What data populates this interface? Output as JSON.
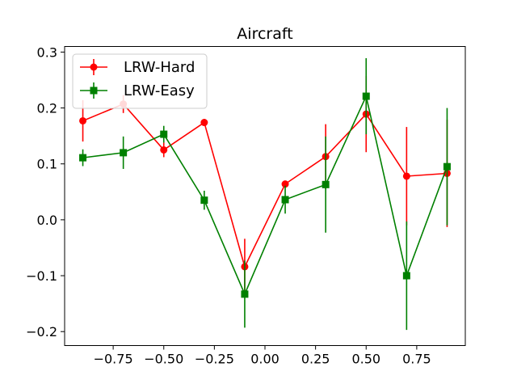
{
  "chart_data": {
    "type": "line",
    "title": "Aircraft",
    "xlabel": "",
    "ylabel": "",
    "xlim": [
      -0.99,
      0.99
    ],
    "ylim": [
      -0.225,
      0.31
    ],
    "grid": false,
    "legend_position": "top-left",
    "x_ticks": [
      -0.75,
      -0.5,
      -0.25,
      0.0,
      0.25,
      0.5,
      0.75
    ],
    "x_tick_labels": [
      "−0.75",
      "−0.50",
      "−0.25",
      "0.00",
      "0.25",
      "0.50",
      "0.75"
    ],
    "y_ticks": [
      -0.2,
      -0.1,
      0.0,
      0.1,
      0.2,
      0.3
    ],
    "y_tick_labels": [
      "−0.2",
      "−0.1",
      "0.0",
      "0.1",
      "0.2",
      "0.3"
    ],
    "x": [
      -0.9,
      -0.7,
      -0.5,
      -0.3,
      -0.1,
      0.1,
      0.3,
      0.5,
      0.7,
      0.9
    ],
    "series": [
      {
        "name": "LRW-Hard",
        "color": "#ff0000",
        "marker": "circle",
        "values": [
          0.177,
          0.207,
          0.125,
          0.174,
          -0.084,
          0.064,
          0.113,
          0.189,
          0.078,
          0.083
        ],
        "errors": [
          0.037,
          0.016,
          0.013,
          0.0,
          0.05,
          0.0,
          0.058,
          0.068,
          0.088,
          0.096
        ]
      },
      {
        "name": "LRW-Easy",
        "color": "#008000",
        "marker": "square",
        "values": [
          0.111,
          0.12,
          0.153,
          0.035,
          -0.133,
          0.036,
          0.063,
          0.221,
          -0.1,
          0.095
        ],
        "errors": [
          0.015,
          0.029,
          0.015,
          0.017,
          0.06,
          0.025,
          0.086,
          0.068,
          0.097,
          0.105
        ]
      }
    ]
  }
}
